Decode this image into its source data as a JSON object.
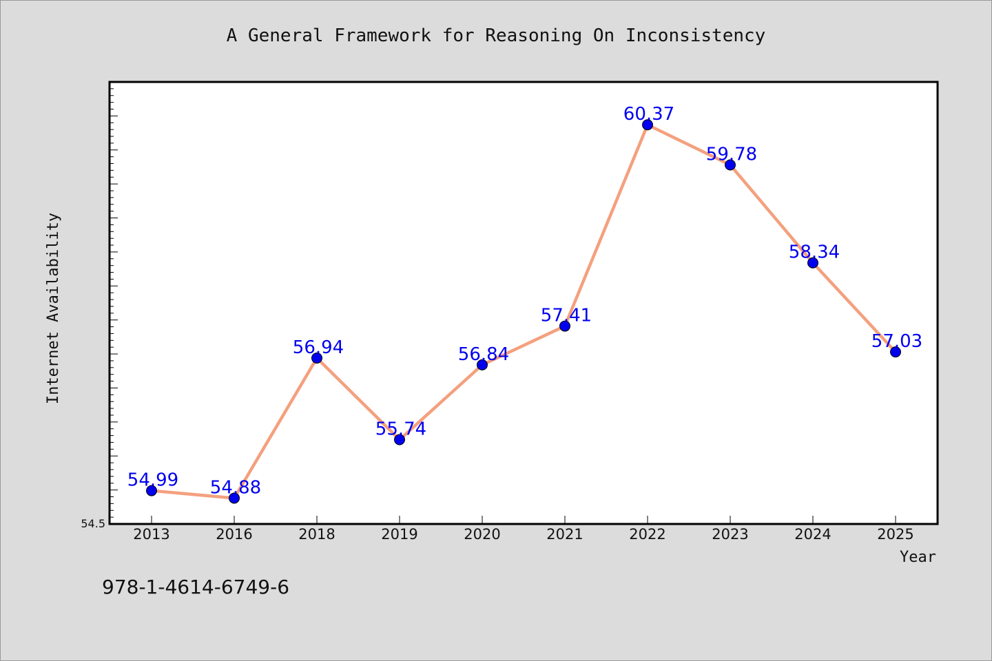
{
  "chart_data": {
    "type": "line",
    "title": "A General Framework for Reasoning On Inconsistency",
    "xlabel": "Year",
    "ylabel": "Internet Availability",
    "categories": [
      "2013",
      "2016",
      "2018",
      "2019",
      "2020",
      "2021",
      "2022",
      "2023",
      "2024",
      "2025"
    ],
    "series": [
      {
        "values": [
          54.99,
          54.88,
          56.94,
          55.74,
          56.84,
          57.41,
          60.37,
          59.78,
          58.34,
          57.03
        ],
        "data_labels": [
          "54.99",
          "54.88",
          "56.94",
          "55.74",
          "56.84",
          "57.41",
          "60.37",
          "59.78",
          "58.34",
          "57.03"
        ]
      }
    ],
    "ylim": [
      54.5,
      61.0
    ],
    "yticks_labeled": [
      "54.5"
    ],
    "grid": false,
    "line_color": "#f4a07e",
    "marker_color": "#0000ee",
    "label_color": "#0000ee"
  },
  "footer": {
    "isbn": "978-1-4614-6749-6"
  },
  "colors": {
    "background": "#dcdcdc",
    "plot_background": "#ffffff",
    "axis": "#000000"
  }
}
